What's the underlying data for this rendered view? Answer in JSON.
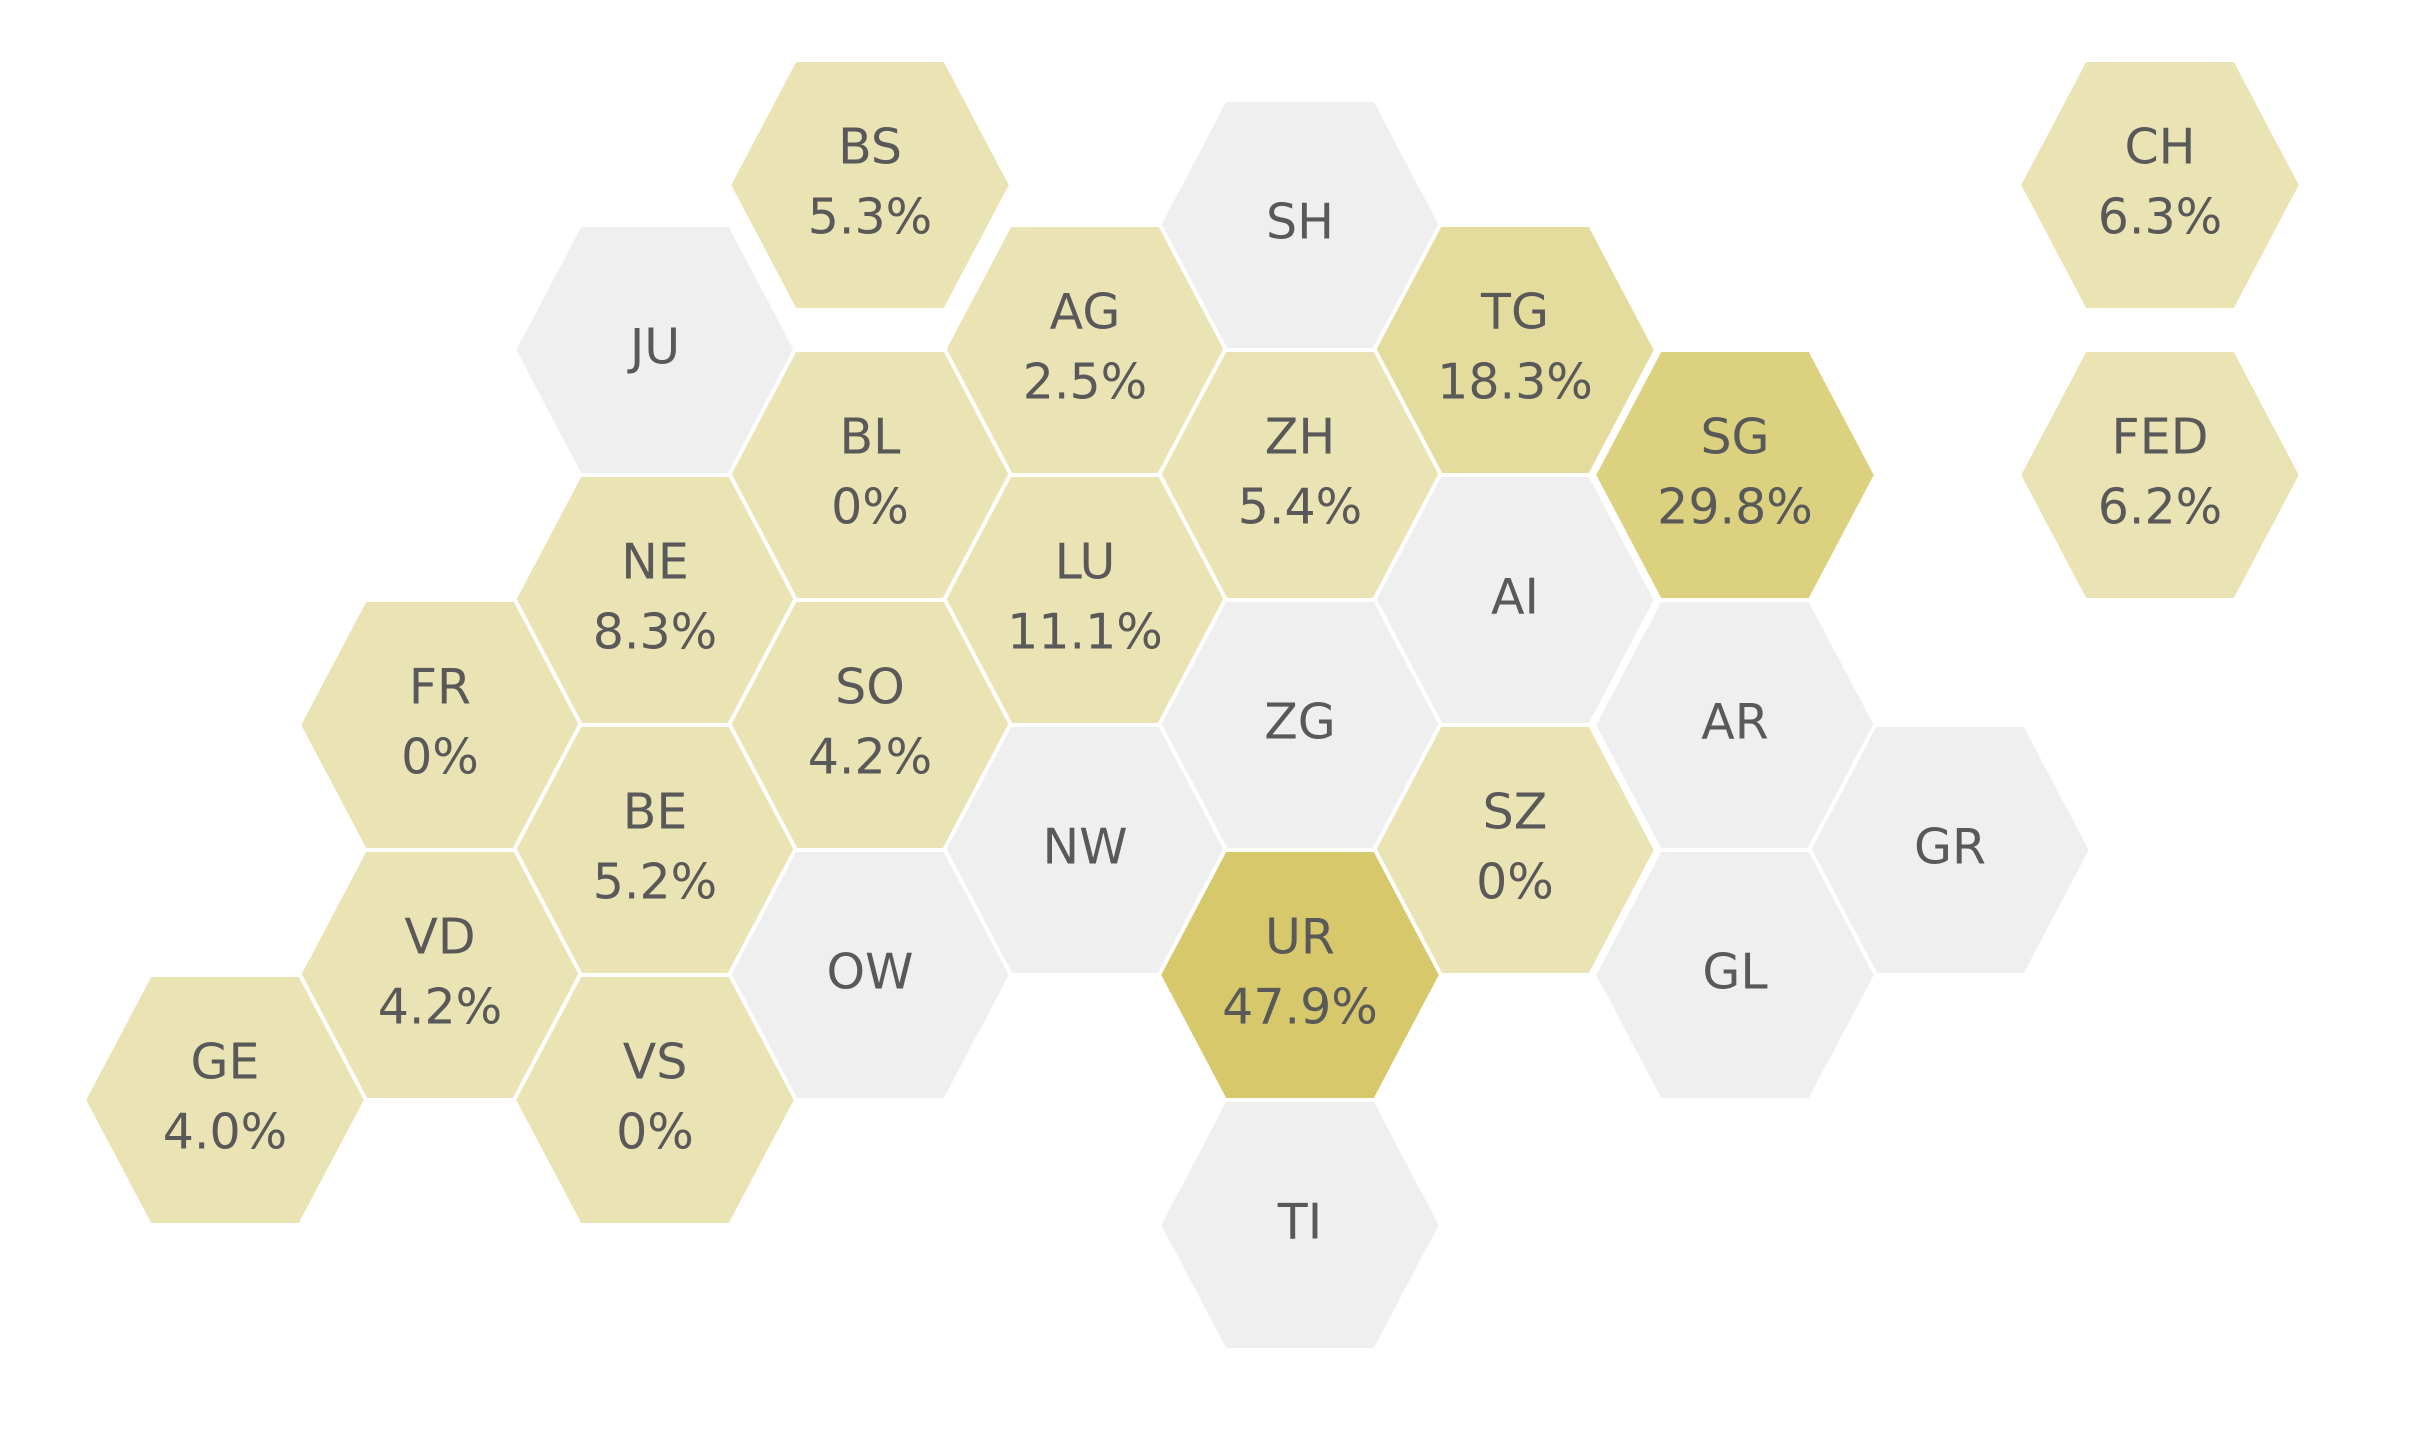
{
  "colors": {
    "no_data": "#efefef",
    "low": "#eae3b4",
    "mid": "#e4dc9c",
    "high": "#d6c86b",
    "text": "#595959",
    "border": "#ffffff"
  },
  "cantons": [
    {
      "code": "BS",
      "value": "5.3%",
      "pct": 5.3,
      "color": "#eae3b4"
    },
    {
      "code": "SH",
      "value": null,
      "pct": null,
      "color": "#efefef"
    },
    {
      "code": "CH",
      "value": "6.3%",
      "pct": 6.3,
      "color": "#eae3b4"
    },
    {
      "code": "JU",
      "value": null,
      "pct": null,
      "color": "#efefef"
    },
    {
      "code": "AG",
      "value": "2.5%",
      "pct": 2.5,
      "color": "#eae3b4"
    },
    {
      "code": "TG",
      "value": "18.3%",
      "pct": 18.3,
      "color": "#e4dc9c"
    },
    {
      "code": "BL",
      "value": "0%",
      "pct": 0,
      "color": "#eae3b4"
    },
    {
      "code": "ZH",
      "value": "5.4%",
      "pct": 5.4,
      "color": "#eae3b4"
    },
    {
      "code": "SG",
      "value": "29.8%",
      "pct": 29.8,
      "color": "#dcd17f"
    },
    {
      "code": "FED",
      "value": "6.2%",
      "pct": 6.2,
      "color": "#eae3b4"
    },
    {
      "code": "NE",
      "value": "8.3%",
      "pct": 8.3,
      "color": "#eae3b4"
    },
    {
      "code": "LU",
      "value": "11.1%",
      "pct": 11.1,
      "color": "#eae3b4"
    },
    {
      "code": "AI",
      "value": null,
      "pct": null,
      "color": "#efefef"
    },
    {
      "code": "FR",
      "value": "0%",
      "pct": 0,
      "color": "#eae3b4"
    },
    {
      "code": "SO",
      "value": "4.2%",
      "pct": 4.2,
      "color": "#eae3b4"
    },
    {
      "code": "ZG",
      "value": null,
      "pct": null,
      "color": "#efefef"
    },
    {
      "code": "AR",
      "value": null,
      "pct": null,
      "color": "#efefef"
    },
    {
      "code": "BE",
      "value": "5.2%",
      "pct": 5.2,
      "color": "#eae3b4"
    },
    {
      "code": "NW",
      "value": null,
      "pct": null,
      "color": "#efefef"
    },
    {
      "code": "SZ",
      "value": "0%",
      "pct": 0,
      "color": "#eae3b4"
    },
    {
      "code": "GR",
      "value": null,
      "pct": null,
      "color": "#efefef"
    },
    {
      "code": "VD",
      "value": "4.2%",
      "pct": 4.2,
      "color": "#eae3b4"
    },
    {
      "code": "OW",
      "value": null,
      "pct": null,
      "color": "#efefef"
    },
    {
      "code": "UR",
      "value": "47.9%",
      "pct": 47.9,
      "color": "#d6c86b"
    },
    {
      "code": "GL",
      "value": null,
      "pct": null,
      "color": "#efefef"
    },
    {
      "code": "GE",
      "value": "4.0%",
      "pct": 4.0,
      "color": "#eae3b4"
    },
    {
      "code": "VS",
      "value": "0%",
      "pct": 0,
      "color": "#eae3b4"
    },
    {
      "code": "TI",
      "value": null,
      "pct": null,
      "color": "#efefef"
    }
  ]
}
